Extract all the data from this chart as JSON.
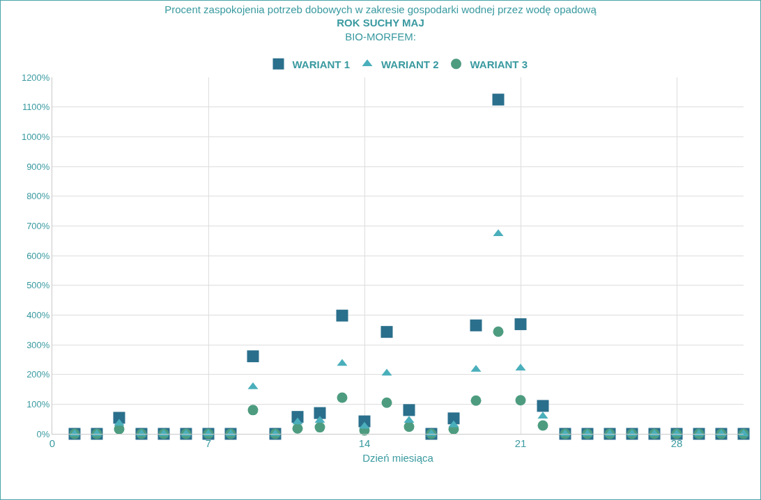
{
  "chart_data": {
    "type": "scatter",
    "title": "Procent zaspokojenia potrzeb dobowych w zakresie gospodarki wodnej przez wodę opadową",
    "subtitle": "ROK SUCHY MAJ",
    "legend_title": "BIO-MORFEM:",
    "xlabel": "Dzień miesiąca",
    "x": [
      1,
      2,
      3,
      4,
      5,
      6,
      7,
      8,
      9,
      10,
      11,
      12,
      13,
      14,
      15,
      16,
      17,
      18,
      19,
      20,
      21,
      22,
      23,
      24,
      25,
      26,
      27,
      28,
      29,
      30,
      31
    ],
    "series": [
      {
        "name": "WARIANT 1",
        "color": "#2a6f8c",
        "marker": "square",
        "values": [
          0,
          0,
          54,
          0,
          0,
          0,
          0,
          0,
          261,
          0,
          57,
          70,
          398,
          42,
          343,
          80,
          0,
          52,
          365,
          1125,
          369,
          94,
          0,
          0,
          0,
          0,
          0,
          0,
          0,
          0,
          0
        ]
      },
      {
        "name": "WARIANT 2",
        "color": "#4aafbb",
        "marker": "triangle",
        "values": [
          0,
          0,
          35,
          0,
          0,
          0,
          0,
          0,
          158,
          0,
          40,
          45,
          237,
          25,
          204,
          45,
          0,
          30,
          217,
          673,
          221,
          59,
          0,
          0,
          0,
          0,
          0,
          0,
          0,
          0,
          0
        ]
      },
      {
        "name": "WARIANT 3",
        "color": "#4e9c80",
        "marker": "circle",
        "values": [
          0,
          0,
          16,
          0,
          0,
          0,
          0,
          0,
          80,
          0,
          18,
          22,
          122,
          12,
          105,
          24,
          0,
          16,
          112,
          344,
          113,
          28,
          0,
          0,
          0,
          0,
          0,
          0,
          0,
          0,
          0
        ]
      }
    ],
    "xlim": [
      0,
      31
    ],
    "xticks": [
      0,
      7,
      14,
      21,
      28
    ],
    "ylim": [
      0,
      1200
    ],
    "yticks": [
      {
        "value": 0,
        "label": "0%"
      },
      {
        "value": 100,
        "label": "100%"
      },
      {
        "value": 200,
        "label": "200%"
      },
      {
        "value": 300,
        "label": "300%"
      },
      {
        "value": 400,
        "label": "400%"
      },
      {
        "value": 500,
        "label": "500%"
      },
      {
        "value": 600,
        "label": "600%"
      },
      {
        "value": 700,
        "label": "700%"
      },
      {
        "value": 800,
        "label": "800%"
      },
      {
        "value": 900,
        "label": "900%"
      },
      {
        "value": 1000,
        "label": "1000%"
      },
      {
        "value": 1100,
        "label": "1100%"
      },
      {
        "value": 1200,
        "label": "1200%"
      }
    ],
    "grid": true,
    "legend": "top"
  }
}
